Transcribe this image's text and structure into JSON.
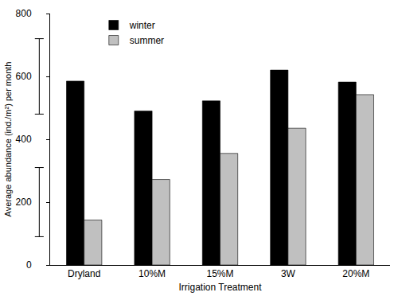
{
  "chart_data": {
    "type": "bar",
    "x_label": "Irrigation Treatment",
    "y_label": "Average abundance (ind./m²) per month",
    "categories": [
      "Dryland",
      "10%M",
      "15%M",
      "3W",
      "20%M"
    ],
    "series": [
      {
        "name": "winter",
        "color": "#000000",
        "values": [
          585,
          490,
          522,
          620,
          582
        ],
        "error_bar": {
          "value": 600,
          "error": 120
        }
      },
      {
        "name": "summer",
        "color": "#c0c0c0",
        "values": [
          143,
          272,
          355,
          435,
          542
        ],
        "error_bar": {
          "value": 200,
          "error": 110
        }
      }
    ],
    "ylim": [
      0,
      800
    ],
    "yticks": [
      0,
      200,
      400,
      600,
      800
    ],
    "grid": false,
    "legend": "upper left"
  }
}
